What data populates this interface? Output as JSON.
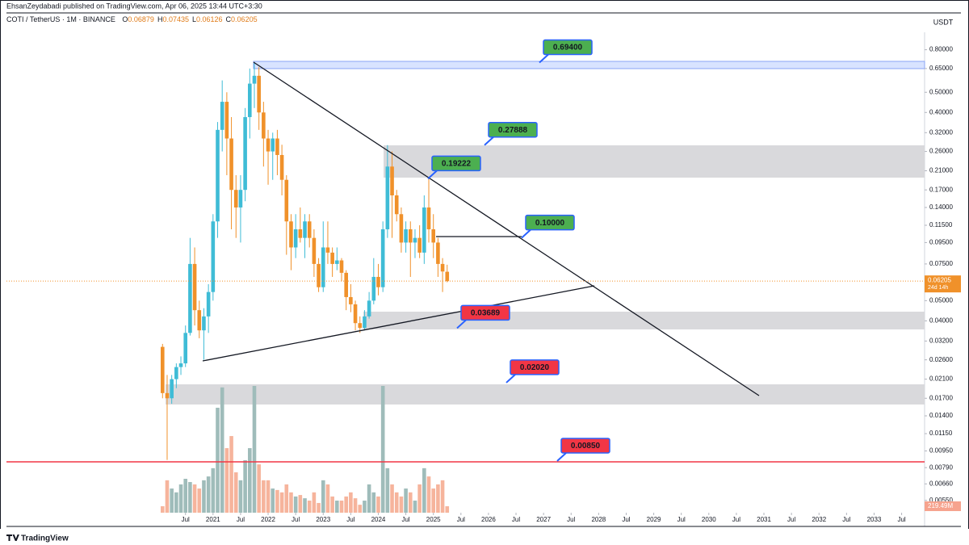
{
  "chart_data": {
    "type": "candlestick",
    "publisher_line": "EhsanZeydabadi published on TradingView.com, Apr 06, 2025 13:44 UTC+3:30",
    "title": "COTI / TetherUS · 1M · BINANCE",
    "ohlc_letters": [
      "O",
      "H",
      "L",
      "C"
    ],
    "currency": "USDT",
    "countdown": "24d 14h",
    "brand": "TradingView",
    "log_scale": true,
    "up_color": "#3fbcd6",
    "down_color": "#f0912a",
    "volume_up_color": "#9fbcba",
    "volume_down_color": "#f6b49c",
    "x": [
      "2020-02",
      "2020-03",
      "2020-04",
      "2020-05",
      "2020-06",
      "2020-07",
      "2020-08",
      "2020-09",
      "2020-10",
      "2020-11",
      "2020-12",
      "2021-01",
      "2021-02",
      "2021-03",
      "2021-04",
      "2021-05",
      "2021-06",
      "2021-07",
      "2021-08",
      "2021-09",
      "2021-10",
      "2021-11",
      "2021-12",
      "2022-01",
      "2022-02",
      "2022-03",
      "2022-04",
      "2022-05",
      "2022-06",
      "2022-07",
      "2022-08",
      "2022-09",
      "2022-10",
      "2022-11",
      "2022-12",
      "2023-01",
      "2023-02",
      "2023-03",
      "2023-04",
      "2023-05",
      "2023-06",
      "2023-07",
      "2023-08",
      "2023-09",
      "2023-10",
      "2023-11",
      "2023-12",
      "2024-01",
      "2024-02",
      "2024-03",
      "2024-04",
      "2024-05",
      "2024-06",
      "2024-07",
      "2024-08",
      "2024-09",
      "2024-10",
      "2024-11",
      "2024-12",
      "2025-01",
      "2025-02",
      "2025-03",
      "2025-04"
    ],
    "open": [
      0.03,
      0.018,
      0.017,
      0.021,
      0.024,
      0.025,
      0.035,
      0.075,
      0.045,
      0.036,
      0.042,
      0.055,
      0.12,
      0.33,
      0.45,
      0.3,
      0.17,
      0.14,
      0.17,
      0.38,
      0.55,
      0.6,
      0.4,
      0.3,
      0.26,
      0.3,
      0.25,
      0.19,
      0.12,
      0.09,
      0.11,
      0.1,
      0.12,
      0.1,
      0.075,
      0.058,
      0.09,
      0.085,
      0.075,
      0.078,
      0.068,
      0.052,
      0.048,
      0.039,
      0.037,
      0.042,
      0.05,
      0.065,
      0.058,
      0.11,
      0.22,
      0.16,
      0.13,
      0.095,
      0.11,
      0.095,
      0.1,
      0.085,
      0.14,
      0.11,
      0.095,
      0.075,
      0.06879
    ],
    "high": [
      0.031,
      0.022,
      0.022,
      0.025,
      0.027,
      0.038,
      0.1,
      0.09,
      0.05,
      0.046,
      0.06,
      0.13,
      0.36,
      0.57,
      0.5,
      0.38,
      0.2,
      0.2,
      0.42,
      0.65,
      0.694,
      0.66,
      0.45,
      0.33,
      0.32,
      0.33,
      0.28,
      0.2,
      0.13,
      0.13,
      0.14,
      0.13,
      0.13,
      0.11,
      0.08,
      0.12,
      0.12,
      0.09,
      0.09,
      0.08,
      0.07,
      0.06,
      0.05,
      0.042,
      0.045,
      0.055,
      0.08,
      0.075,
      0.12,
      0.27888,
      0.26,
      0.17,
      0.14,
      0.12,
      0.12,
      0.11,
      0.115,
      0.16,
      0.19222,
      0.13,
      0.1,
      0.08,
      0.07435
    ],
    "low": [
      0.017,
      0.0086,
      0.016,
      0.019,
      0.022,
      0.024,
      0.034,
      0.038,
      0.033,
      0.026,
      0.035,
      0.05,
      0.1,
      0.26,
      0.2,
      0.11,
      0.1,
      0.095,
      0.15,
      0.3,
      0.42,
      0.33,
      0.22,
      0.18,
      0.19,
      0.2,
      0.16,
      0.083,
      0.07,
      0.08,
      0.095,
      0.08,
      0.09,
      0.065,
      0.055,
      0.055,
      0.075,
      0.065,
      0.07,
      0.062,
      0.045,
      0.044,
      0.036,
      0.035,
      0.036,
      0.041,
      0.048,
      0.053,
      0.055,
      0.1,
      0.1,
      0.12,
      0.085,
      0.085,
      0.065,
      0.08,
      0.08,
      0.075,
      0.095,
      0.08,
      0.065,
      0.055,
      0.06126
    ],
    "close": [
      0.018,
      0.017,
      0.021,
      0.024,
      0.025,
      0.035,
      0.075,
      0.045,
      0.036,
      0.042,
      0.055,
      0.12,
      0.33,
      0.45,
      0.3,
      0.17,
      0.14,
      0.17,
      0.38,
      0.55,
      0.6,
      0.4,
      0.3,
      0.26,
      0.3,
      0.25,
      0.19,
      0.12,
      0.09,
      0.11,
      0.1,
      0.12,
      0.1,
      0.075,
      0.058,
      0.09,
      0.085,
      0.075,
      0.078,
      0.068,
      0.052,
      0.048,
      0.039,
      0.037,
      0.042,
      0.05,
      0.065,
      0.058,
      0.11,
      0.22,
      0.16,
      0.13,
      0.095,
      0.11,
      0.095,
      0.1,
      0.085,
      0.14,
      0.11,
      0.095,
      0.075,
      0.069,
      0.06205
    ],
    "volume": {
      "values": [
        220,
        1100,
        820,
        690,
        960,
        1150,
        1040,
        960,
        820,
        1100,
        1230,
        1510,
        3560,
        4250,
        2190,
        2600,
        1370,
        1100,
        1780,
        2190,
        4300,
        1640,
        1100,
        1100,
        820,
        770,
        690,
        960,
        690,
        550,
        600,
        490,
        410,
        690,
        330,
        1100,
        960,
        550,
        410,
        410,
        550,
        690,
        490,
        270,
        410,
        960,
        690,
        550,
        4300,
        1510,
        960,
        690,
        550,
        820,
        690,
        410,
        960,
        1510,
        1230,
        820,
        960,
        1100,
        219.49
      ],
      "last_label": "219.49M"
    },
    "last_price": 0.06205,
    "xlim": [
      "2017-04",
      "2033-12"
    ],
    "xticks": [
      {
        "value": "2020-07",
        "label": "Jul"
      },
      {
        "value": "2021-01",
        "label": "2021"
      },
      {
        "value": "2021-07",
        "label": "Jul"
      },
      {
        "value": "2022-01",
        "label": "2022"
      },
      {
        "value": "2022-07",
        "label": "Jul"
      },
      {
        "value": "2023-01",
        "label": "2023"
      },
      {
        "value": "2023-07",
        "label": "Jul"
      },
      {
        "value": "2024-01",
        "label": "2024"
      },
      {
        "value": "2024-07",
        "label": "Jul"
      },
      {
        "value": "2025-01",
        "label": "2025"
      },
      {
        "value": "2025-07",
        "label": "Jul"
      },
      {
        "value": "2026-01",
        "label": "2026"
      },
      {
        "value": "2026-07",
        "label": "Jul"
      },
      {
        "value": "2027-01",
        "label": "2027"
      },
      {
        "value": "2027-07",
        "label": "Jul"
      },
      {
        "value": "2028-01",
        "label": "2028"
      },
      {
        "value": "2028-07",
        "label": "Jul"
      },
      {
        "value": "2029-01",
        "label": "2029"
      },
      {
        "value": "2029-07",
        "label": "Jul"
      },
      {
        "value": "2030-01",
        "label": "2030"
      },
      {
        "value": "2030-07",
        "label": "Jul"
      },
      {
        "value": "2031-01",
        "label": "2031"
      },
      {
        "value": "2031-07",
        "label": "Jul"
      },
      {
        "value": "2032-01",
        "label": "2032"
      },
      {
        "value": "2032-07",
        "label": "Jul"
      },
      {
        "value": "2033-01",
        "label": "2033"
      },
      {
        "value": "2033-07",
        "label": "Jul"
      }
    ],
    "ylim": [
      0.0048,
      0.97
    ],
    "yticks": [
      {
        "value": 0.8,
        "label": "0.80000"
      },
      {
        "value": 0.65,
        "label": "0.65000"
      },
      {
        "value": 0.5,
        "label": "0.50000"
      },
      {
        "value": 0.4,
        "label": "0.40000"
      },
      {
        "value": 0.32,
        "label": "0.32000"
      },
      {
        "value": 0.26,
        "label": "0.26000"
      },
      {
        "value": 0.21,
        "label": "0.21000"
      },
      {
        "value": 0.17,
        "label": "0.17000"
      },
      {
        "value": 0.14,
        "label": "0.14000"
      },
      {
        "value": 0.115,
        "label": "0.11500"
      },
      {
        "value": 0.095,
        "label": "0.09500"
      },
      {
        "value": 0.075,
        "label": "0.07500"
      },
      {
        "value": 0.05,
        "label": "0.05000"
      },
      {
        "value": 0.04,
        "label": "0.04000"
      },
      {
        "value": 0.032,
        "label": "0.03200"
      },
      {
        "value": 0.026,
        "label": "0.02600"
      },
      {
        "value": 0.021,
        "label": "0.02100"
      },
      {
        "value": 0.017,
        "label": "0.01700"
      },
      {
        "value": 0.014,
        "label": "0.01400"
      },
      {
        "value": 0.0115,
        "label": "0.01150"
      },
      {
        "value": 0.0095,
        "label": "0.00950"
      },
      {
        "value": 0.0079,
        "label": "0.00790"
      },
      {
        "value": 0.0066,
        "label": "0.00660"
      },
      {
        "value": 0.0055,
        "label": "0.00550"
      }
    ],
    "annotations": [
      {
        "value": 0.694,
        "label": "0.69400",
        "color": "#4caf50"
      },
      {
        "value": 0.27888,
        "label": "0.27888",
        "color": "#4caf50"
      },
      {
        "value": 0.19222,
        "label": "0.19222",
        "color": "#4caf50"
      },
      {
        "value": 0.1,
        "label": "0.10000",
        "color": "#4caf50"
      },
      {
        "value": 0.03689,
        "label": "0.03689",
        "color": "#f23645"
      },
      {
        "value": 0.0202,
        "label": "0.02020",
        "color": "#f23645"
      },
      {
        "value": 0.0085,
        "label": "0.00850",
        "color": "#f23645"
      }
    ]
  }
}
